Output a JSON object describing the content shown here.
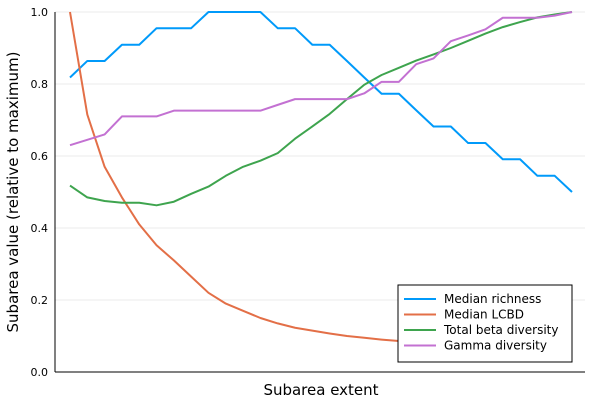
{
  "chart_data": {
    "type": "line",
    "title": "",
    "xlabel": "Subarea extent",
    "ylabel": "Subarea value (relative to maximum)",
    "ylim": [
      0,
      1
    ],
    "yticks": [
      "0.0",
      "0.2",
      "0.4",
      "0.6",
      "0.8",
      "1.0"
    ],
    "xticks": [],
    "grid": true,
    "legend_position": "bottom-right",
    "x": [
      1,
      2,
      3,
      4,
      5,
      6,
      7,
      8,
      9,
      10,
      11,
      12,
      13,
      14,
      15,
      16,
      17,
      18,
      19,
      20,
      21,
      22,
      23,
      24,
      25,
      26,
      27,
      28,
      29,
      30
    ],
    "series": [
      {
        "name": "Median richness",
        "color": "#009AFA",
        "values": [
          0.818,
          0.864,
          0.864,
          0.909,
          0.909,
          0.955,
          0.955,
          0.955,
          1.0,
          1.0,
          1.0,
          1.0,
          0.955,
          0.955,
          0.909,
          0.909,
          0.864,
          0.818,
          0.773,
          0.773,
          0.727,
          0.682,
          0.682,
          0.636,
          0.636,
          0.591,
          0.591,
          0.545,
          0.545,
          0.5
        ]
      },
      {
        "name": "Median LCBD",
        "color": "#E36F47",
        "values": [
          1.0,
          0.715,
          0.57,
          0.485,
          0.41,
          0.352,
          0.31,
          0.265,
          0.22,
          0.19,
          0.17,
          0.15,
          0.135,
          0.123,
          0.115,
          0.107,
          0.1,
          0.095,
          0.09,
          0.086,
          0.082,
          0.079,
          0.077,
          0.075,
          0.073,
          0.072,
          0.071,
          0.07,
          0.069,
          0.068
        ]
      },
      {
        "name": "Total beta diversity",
        "color": "#3EA44E",
        "values": [
          0.518,
          0.485,
          0.475,
          0.47,
          0.47,
          0.463,
          0.473,
          0.495,
          0.515,
          0.545,
          0.57,
          0.587,
          0.608,
          0.648,
          0.682,
          0.717,
          0.758,
          0.798,
          0.825,
          0.845,
          0.865,
          0.882,
          0.9,
          0.92,
          0.94,
          0.958,
          0.972,
          0.985,
          0.993,
          1.0
        ]
      },
      {
        "name": "Gamma diversity",
        "color": "#C371D2",
        "values": [
          0.63,
          0.645,
          0.66,
          0.71,
          0.71,
          0.71,
          0.726,
          0.726,
          0.726,
          0.726,
          0.726,
          0.726,
          0.742,
          0.758,
          0.758,
          0.758,
          0.758,
          0.774,
          0.806,
          0.806,
          0.855,
          0.871,
          0.919,
          0.935,
          0.952,
          0.984,
          0.984,
          0.984,
          0.99,
          1.0
        ]
      }
    ]
  }
}
